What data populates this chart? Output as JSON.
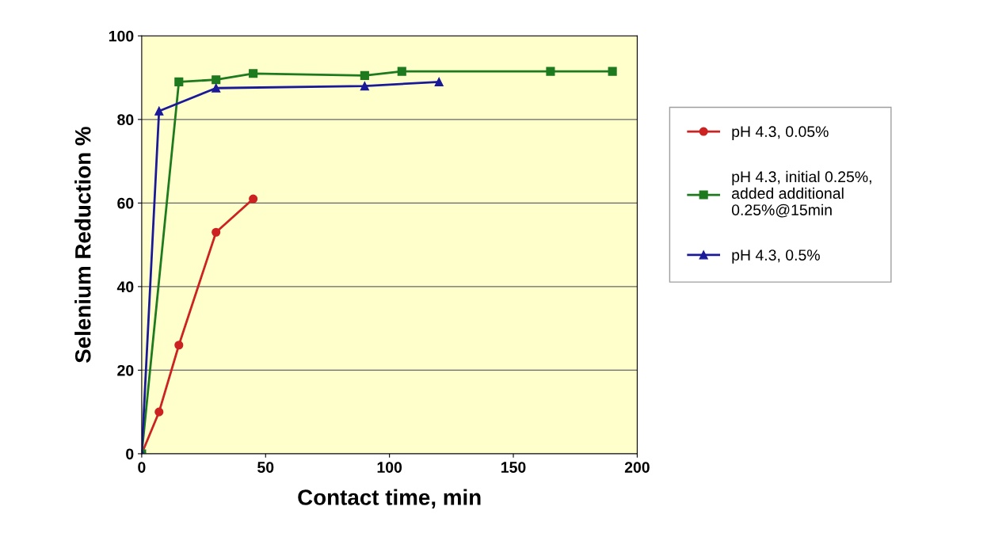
{
  "chart_data": {
    "type": "line",
    "xlabel": "Contact time, min",
    "ylabel": "Selenium Reduction %",
    "xlim": [
      0,
      200
    ],
    "xticks": [
      0,
      50,
      100,
      150,
      200
    ],
    "ylim": [
      0,
      100
    ],
    "yticks": [
      0,
      20,
      40,
      60,
      80,
      100
    ],
    "grid": "y",
    "legend": "right",
    "line_style": "solid",
    "series": [
      {
        "name": "pH 4.3, 0.05%",
        "color": "#cc2222",
        "marker": "circle",
        "x": [
          0,
          7,
          15,
          30,
          45
        ],
        "values": [
          0,
          10,
          26,
          53,
          61
        ]
      },
      {
        "name": "pH 4.3, initial 0.25%,\nadded additional\n0.25%@15min",
        "color": "#1e7a1e",
        "marker": "square",
        "x": [
          0,
          15,
          30,
          45,
          90,
          105,
          165,
          190
        ],
        "values": [
          0,
          89,
          89.5,
          91,
          90.5,
          91.5,
          91.5,
          91.5
        ]
      },
      {
        "name": "pH 4.3, 0.5%",
        "color": "#1a1a99",
        "marker": "triangle",
        "x": [
          0,
          7,
          30,
          90,
          120
        ],
        "values": [
          0,
          82,
          87.5,
          88,
          89
        ]
      }
    ]
  }
}
